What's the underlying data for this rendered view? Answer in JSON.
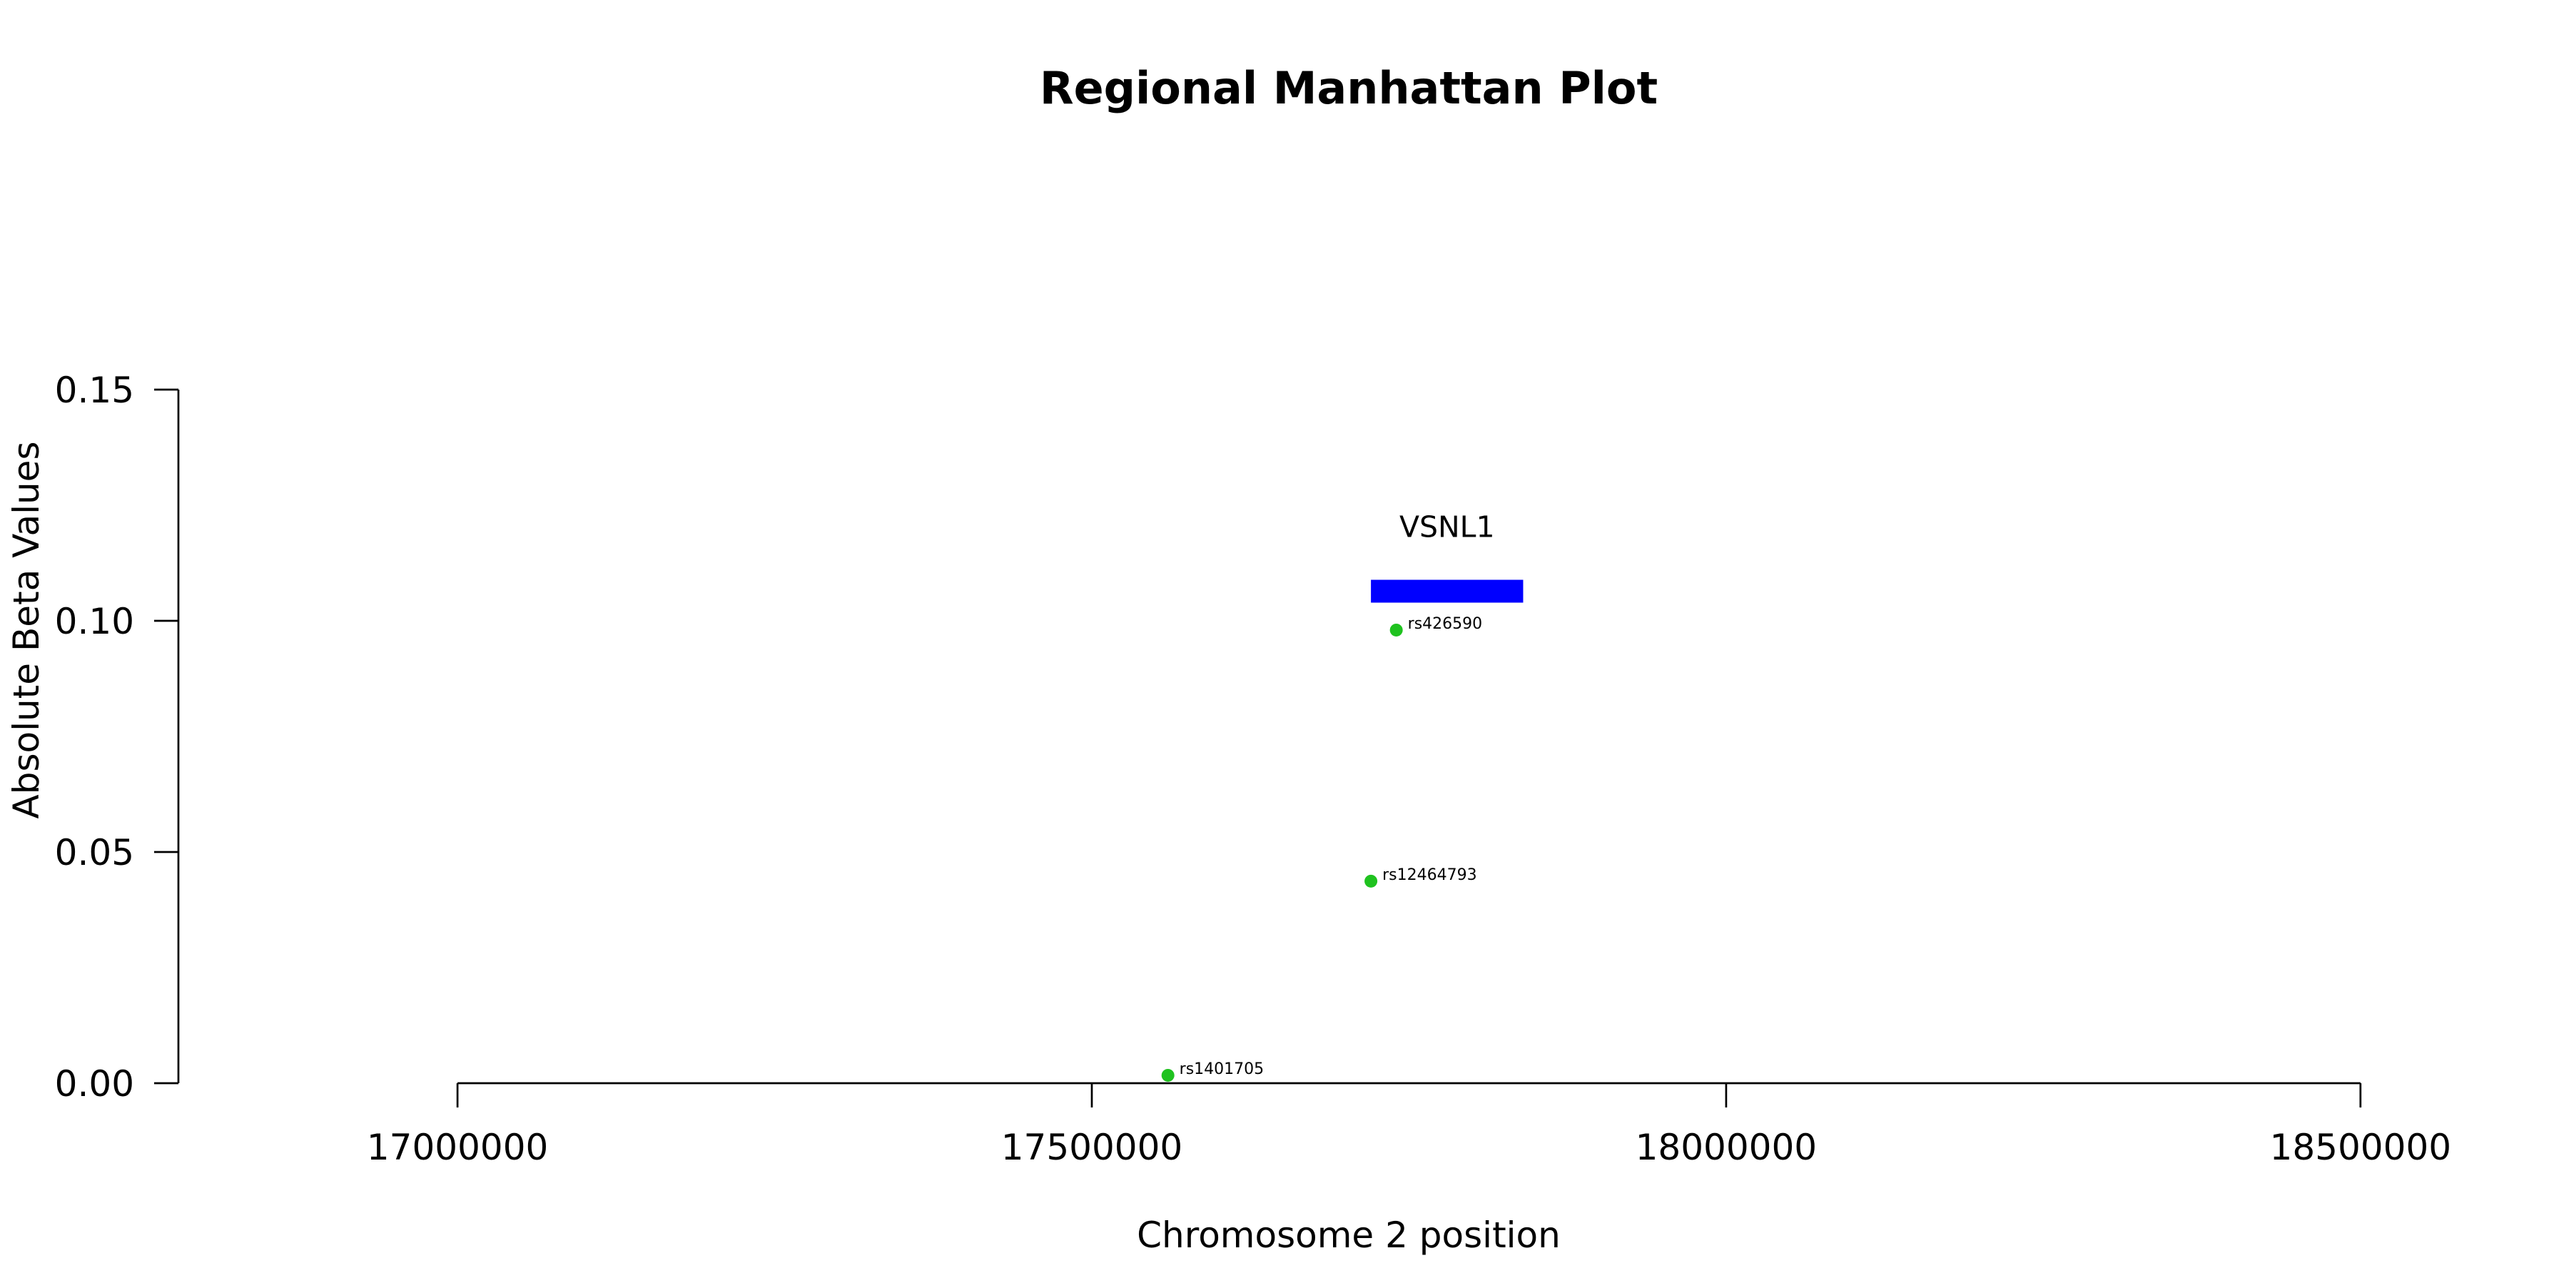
{
  "chart_data": {
    "type": "scatter",
    "title": "Regional Manhattan Plot",
    "xlabel": "Chromosome 2 position",
    "ylabel": "Absolute Beta Values",
    "xlim": [
      16780000,
      18580000
    ],
    "ylim": [
      0,
      0.15
    ],
    "x_ticks": [
      17000000,
      17500000,
      18000000,
      18500000
    ],
    "x_tick_labels": [
      "17000000",
      "17500000",
      "18000000",
      "18500000"
    ],
    "x_axis_range": [
      17000000,
      18500000
    ],
    "y_ticks": [
      0,
      0.05,
      0.1,
      0.15
    ],
    "y_tick_labels": [
      "0.00",
      "0.05",
      "0.10",
      "0.15"
    ],
    "grid": false,
    "point_color": "#1fc21f",
    "points": [
      {
        "label": "rs426590",
        "x": 17740000,
        "y": 0.098
      },
      {
        "label": "rs12464793",
        "x": 17720000,
        "y": 0.0437
      },
      {
        "label": "rs1401705",
        "x": 17560000,
        "y": 0.0017
      }
    ],
    "genes": [
      {
        "name": "VSNL1",
        "start": 17720000,
        "end": 17840000,
        "y": 0.1064,
        "color": "#0000ff"
      }
    ]
  }
}
